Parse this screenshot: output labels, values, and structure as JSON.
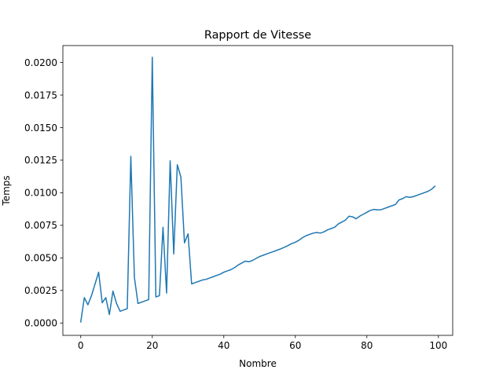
{
  "chart_data": {
    "type": "line",
    "title": "Rapport de Vitesse",
    "xlabel": "Nombre",
    "ylabel": "Temps",
    "xlim": [
      -5,
      104
    ],
    "ylim": [
      -0.00095,
      0.0213
    ],
    "xticks": [
      0,
      20,
      40,
      60,
      80,
      100
    ],
    "yticks": [
      0.0,
      0.0025,
      0.005,
      0.0075,
      0.01,
      0.0125,
      0.015,
      0.0175,
      0.02
    ],
    "xtick_labels": [
      "0",
      "20",
      "40",
      "60",
      "80",
      "100"
    ],
    "ytick_labels": [
      "0.0000",
      "0.0025",
      "0.0050",
      "0.0075",
      "0.0100",
      "0.0125",
      "0.0150",
      "0.0175",
      "0.0200"
    ],
    "grid": false,
    "legend": false,
    "line_color": "#1f77b4",
    "x": [
      0,
      1,
      2,
      3,
      4,
      5,
      6,
      7,
      8,
      9,
      10,
      11,
      12,
      13,
      14,
      15,
      16,
      17,
      18,
      19,
      20,
      21,
      22,
      23,
      24,
      25,
      26,
      27,
      28,
      29,
      30,
      31,
      32,
      33,
      34,
      35,
      36,
      37,
      38,
      39,
      40,
      41,
      42,
      43,
      44,
      45,
      46,
      47,
      48,
      49,
      50,
      51,
      52,
      53,
      54,
      55,
      56,
      57,
      58,
      59,
      60,
      61,
      62,
      63,
      64,
      65,
      66,
      67,
      68,
      69,
      70,
      71,
      72,
      73,
      74,
      75,
      76,
      77,
      78,
      79,
      80,
      81,
      82,
      83,
      84,
      85,
      86,
      87,
      88,
      89,
      90,
      91,
      92,
      93,
      94,
      95,
      96,
      97,
      98,
      99
    ],
    "y": [
      8e-05,
      0.00195,
      0.0014,
      0.0021,
      0.003,
      0.0039,
      0.00155,
      0.00195,
      0.00065,
      0.00245,
      0.0015,
      0.0009,
      0.001,
      0.0011,
      0.0128,
      0.0035,
      0.0015,
      0.0016,
      0.0017,
      0.0018,
      0.0204,
      0.002,
      0.0021,
      0.00735,
      0.0023,
      0.01245,
      0.0053,
      0.01215,
      0.0112,
      0.00615,
      0.00685,
      0.003,
      0.0031,
      0.0032,
      0.0033,
      0.00335,
      0.00345,
      0.00355,
      0.00365,
      0.00375,
      0.0039,
      0.004,
      0.0041,
      0.00425,
      0.00445,
      0.0046,
      0.00475,
      0.0047,
      0.0048,
      0.00495,
      0.0051,
      0.0052,
      0.0053,
      0.0054,
      0.0055,
      0.0056,
      0.0057,
      0.00582,
      0.00595,
      0.0061,
      0.0062,
      0.00635,
      0.00655,
      0.0067,
      0.0068,
      0.0069,
      0.00695,
      0.0069,
      0.007,
      0.00715,
      0.00725,
      0.00735,
      0.0076,
      0.00775,
      0.0079,
      0.0082,
      0.00815,
      0.008,
      0.0082,
      0.00835,
      0.0085,
      0.00865,
      0.00872,
      0.00868,
      0.0087,
      0.0088,
      0.0089,
      0.009,
      0.0091,
      0.00945,
      0.00955,
      0.0097,
      0.00965,
      0.0097,
      0.0098,
      0.0099,
      0.01,
      0.0101,
      0.01025,
      0.0105
    ]
  }
}
